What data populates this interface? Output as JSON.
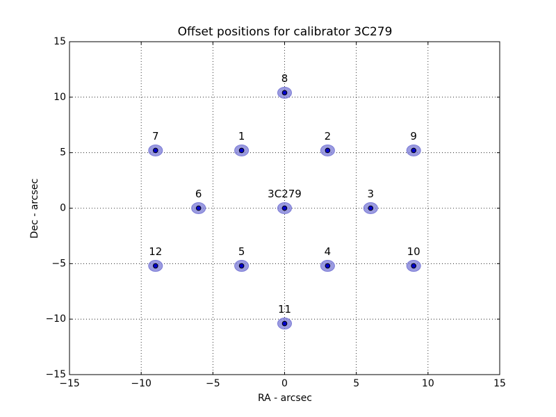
{
  "chart_data": {
    "type": "scatter",
    "title": "Offset positions for calibrator 3C279",
    "x_label": "RA - arcsec",
    "y_label": "Dec - arcsec",
    "labels": [
      "3C279",
      "1",
      "2",
      "3",
      "4",
      "5",
      "6",
      "7",
      "8",
      "9",
      "10",
      "11",
      "12"
    ],
    "x": [
      0,
      -3,
      3,
      6,
      3,
      -3,
      -6,
      -9,
      0,
      9,
      9,
      0,
      -9
    ],
    "y": [
      0,
      5.2,
      5.2,
      0,
      -5.2,
      -5.2,
      0,
      5.2,
      10.4,
      5.2,
      -5.2,
      -10.4,
      -5.2
    ],
    "color": "#0000cc",
    "halo_color": "#7a7ad6",
    "xlim": [
      -15,
      15
    ],
    "ylim": [
      -15,
      15
    ],
    "xticks": [
      {
        "value": -15,
        "label": "−15"
      },
      {
        "value": -10,
        "label": "−10"
      },
      {
        "value": -5,
        "label": "−5"
      },
      0,
      5,
      10,
      15
    ],
    "yticks": [
      {
        "value": -15,
        "label": "−15"
      },
      {
        "value": -10,
        "label": "−10"
      },
      {
        "value": -5,
        "label": "−5"
      },
      0,
      5,
      10,
      15
    ],
    "grid": true
  }
}
